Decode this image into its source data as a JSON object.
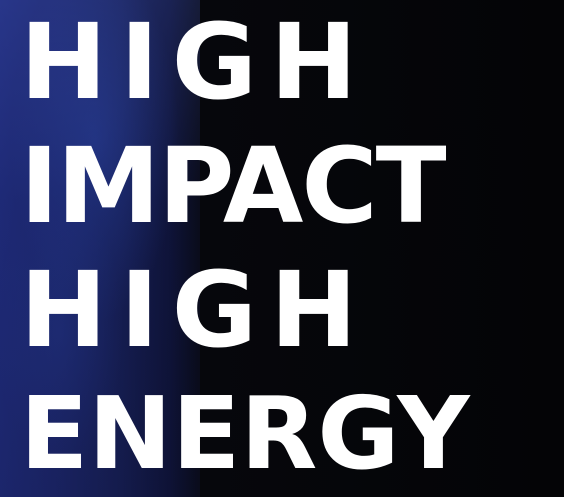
{
  "headline": {
    "lines": [
      "HIGH",
      "IMPACT",
      "HIGH",
      "ENERGY"
    ]
  },
  "colors": {
    "text": "#ffffff",
    "background": "#050608",
    "accent_glow": "#1e2a78"
  }
}
